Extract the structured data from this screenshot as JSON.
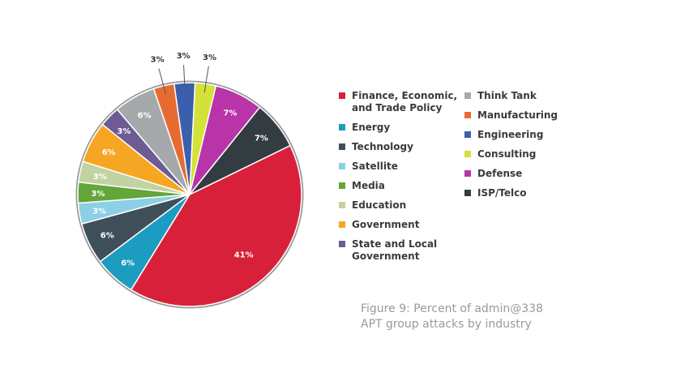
{
  "chart_data": {
    "type": "pie",
    "title": "",
    "caption_line1": "Figure 9: Percent of admin@338",
    "caption_line2": "APT group attacks by industry",
    "legend_position": "right",
    "slices": [
      {
        "name": "Finance, Economic, and Trade Policy",
        "legend_lines": [
          "Finance, Economic,",
          "and Trade Policy"
        ],
        "value": 41,
        "label": "41%",
        "color": "#d9203a"
      },
      {
        "name": "Energy",
        "legend_lines": [
          "Energy"
        ],
        "value": 6,
        "label": "6%",
        "color": "#1b9cc0"
      },
      {
        "name": "Technology",
        "legend_lines": [
          "Technology"
        ],
        "value": 6,
        "label": "6%",
        "color": "#3f4f5a"
      },
      {
        "name": "Satellite",
        "legend_lines": [
          "Satellite"
        ],
        "value": 3,
        "label": "3%",
        "color": "#8ccfe6"
      },
      {
        "name": "Media",
        "legend_lines": [
          "Media"
        ],
        "value": 3,
        "label": "3%",
        "color": "#63a538"
      },
      {
        "name": "Education",
        "legend_lines": [
          "Education"
        ],
        "value": 3,
        "label": "3%",
        "color": "#c2d2a2"
      },
      {
        "name": "Government",
        "legend_lines": [
          "Government"
        ],
        "value": 6,
        "label": "6%",
        "color": "#f6a623"
      },
      {
        "name": "State and Local Government",
        "legend_lines": [
          "State and Local",
          "Government"
        ],
        "value": 3,
        "label": "3%",
        "color": "#6e5b94"
      },
      {
        "name": "Think Tank",
        "legend_lines": [
          "Think Tank"
        ],
        "value": 6,
        "label": "6%",
        "color": "#a6a9ab"
      },
      {
        "name": "Manufacturing",
        "legend_lines": [
          "Manufacturing"
        ],
        "value": 3,
        "label": "3%",
        "color": "#e76b31"
      },
      {
        "name": "Engineering",
        "legend_lines": [
          "Engineering"
        ],
        "value": 3,
        "label": "3%",
        "color": "#3c5fad"
      },
      {
        "name": "Consulting",
        "legend_lines": [
          "Consulting"
        ],
        "value": 3,
        "label": "3%",
        "color": "#d4e237"
      },
      {
        "name": "Defense",
        "legend_lines": [
          "Defense"
        ],
        "value": 7,
        "label": "7%",
        "color": "#b834a8"
      },
      {
        "name": "ISP/Telco",
        "legend_lines": [
          "ISP/Telco"
        ],
        "value": 7,
        "label": "7%",
        "color": "#333c41"
      }
    ]
  }
}
